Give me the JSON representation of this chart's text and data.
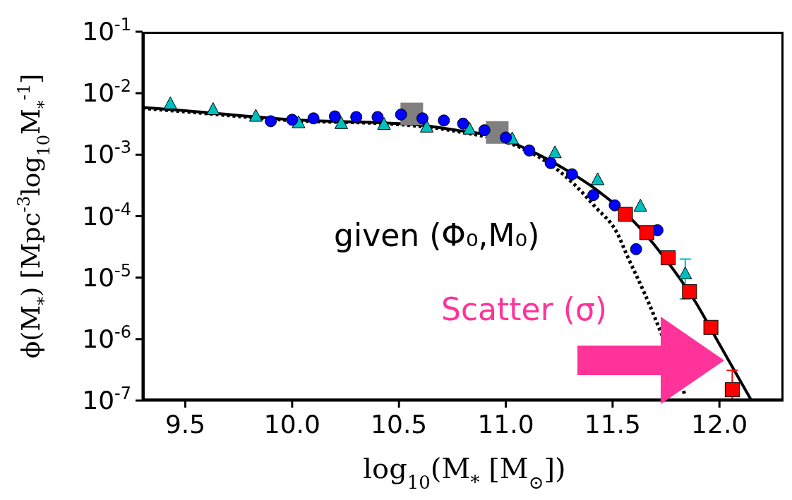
{
  "chart_data": {
    "type": "scatter",
    "xlabel": "log$_{10}$(M$_{*}$ [M$_{⊙}$])",
    "ylabel": "ϕ(M$_{*}$) [Mpc$^{-3}$log$_{10}$M$_{*}$$^{-1}$]",
    "log": "y",
    "xlim": [
      9.3,
      12.3
    ],
    "ylim": [
      1e-07,
      0.1
    ],
    "xticks": [
      9.5,
      {
        "value": 10,
        "label": "10.0"
      },
      10.5,
      {
        "value": 11,
        "label": "11.0"
      },
      11.5,
      {
        "value": 12,
        "label": "12.0"
      }
    ],
    "yticks": [
      {
        "value": 1e-07,
        "label": "10$^{-7}$"
      },
      {
        "value": 1e-06,
        "label": "10$^{-6}$"
      },
      {
        "value": 1e-05,
        "label": "10$^{-5}$"
      },
      {
        "value": 0.0001,
        "label": "10$^{-4}$"
      },
      {
        "value": 0.001,
        "label": "10$^{-3}$"
      },
      {
        "value": 0.01,
        "label": "10$^{-2}$"
      },
      {
        "value": 0.1,
        "label": "10$^{-1}$"
      }
    ],
    "annotations": [
      "given (Φ₀,M₀)",
      "Scatter (σ)"
    ],
    "series": [
      {
        "type": "line",
        "color": "#000000",
        "marker": "none",
        "line_style": "dotted",
        "x": [
          9.3,
          9.5,
          10.0,
          10.5,
          10.77,
          11.07,
          11.21,
          11.32,
          11.42,
          11.52,
          11.57,
          11.65,
          11.75,
          11.84
        ],
        "values": [
          0.0057,
          0.005,
          0.0036,
          0.0031,
          0.0024,
          0.0013,
          0.00069,
          0.00033,
          0.00014,
          5.4e-05,
          2.2e-05,
          5.5e-06,
          null,
          1.2e-07
        ]
      },
      {
        "type": "line",
        "color": "#000000",
        "marker": "none",
        "line_style": "solid",
        "x": [
          9.3,
          9.5,
          10.0,
          10.5,
          10.61,
          10.77,
          10.94,
          11.1,
          11.27,
          11.43,
          11.6,
          11.73,
          11.89,
          11.99,
          12.15
        ],
        "values": [
          0.0059,
          0.0052,
          0.0037,
          0.0032,
          0.003,
          0.0025,
          0.002,
          0.00123,
          0.0006,
          0.00026,
          8.1e-05,
          2.4e-05,
          3.9e-06,
          9.5e-07,
          1e-07
        ]
      },
      {
        "color": "#808080",
        "marker": "square",
        "x": [
          10.56,
          10.96
        ],
        "values": [
          0.0046,
          0.0023
        ]
      },
      {
        "color": "#00bfbf",
        "marker": "triangle",
        "x": [
          9.43,
          9.63,
          9.83,
          10.03,
          10.23,
          10.43,
          10.63,
          10.83,
          11.03,
          11.23,
          11.43,
          11.63,
          11.84
        ],
        "values": [
          0.0067,
          0.0054,
          0.0042,
          0.0033,
          0.0032,
          0.0031,
          0.0028,
          0.0026,
          0.0018,
          0.00107,
          0.00039,
          0.000145,
          1.15e-05
        ],
        "errors": [
          null,
          null,
          null,
          null,
          null,
          null,
          null,
          null,
          null,
          null,
          null,
          null,
          [
            4.5e-06,
            2e-05
          ]
        ]
      },
      {
        "color": "#0000ff",
        "marker": "circle",
        "x": [
          9.9,
          10.0,
          10.1,
          10.2,
          10.3,
          10.4,
          10.51,
          10.61,
          10.71,
          10.8,
          10.9,
          11.0,
          11.11,
          11.21,
          11.31,
          11.41,
          11.51,
          11.61,
          11.71
        ],
        "values": [
          0.0035,
          0.0037,
          0.0039,
          0.0042,
          0.0041,
          0.0041,
          0.0045,
          0.0039,
          0.0036,
          0.0032,
          0.0025,
          0.0019,
          0.00117,
          0.00073,
          0.00048,
          0.00022,
          0.00015,
          2.9e-05,
          5.9e-05
        ]
      },
      {
        "color": "#ff0000",
        "marker": "square",
        "x": [
          11.56,
          11.66,
          11.76,
          11.86,
          11.96,
          12.06
        ],
        "values": [
          0.000107,
          5.4e-05,
          2.1e-05,
          5.9e-06,
          1.55e-06,
          1.5e-07
        ],
        "errors": [
          null,
          null,
          null,
          null,
          null,
          [
            1e-07,
            3.1e-07
          ]
        ]
      }
    ]
  }
}
